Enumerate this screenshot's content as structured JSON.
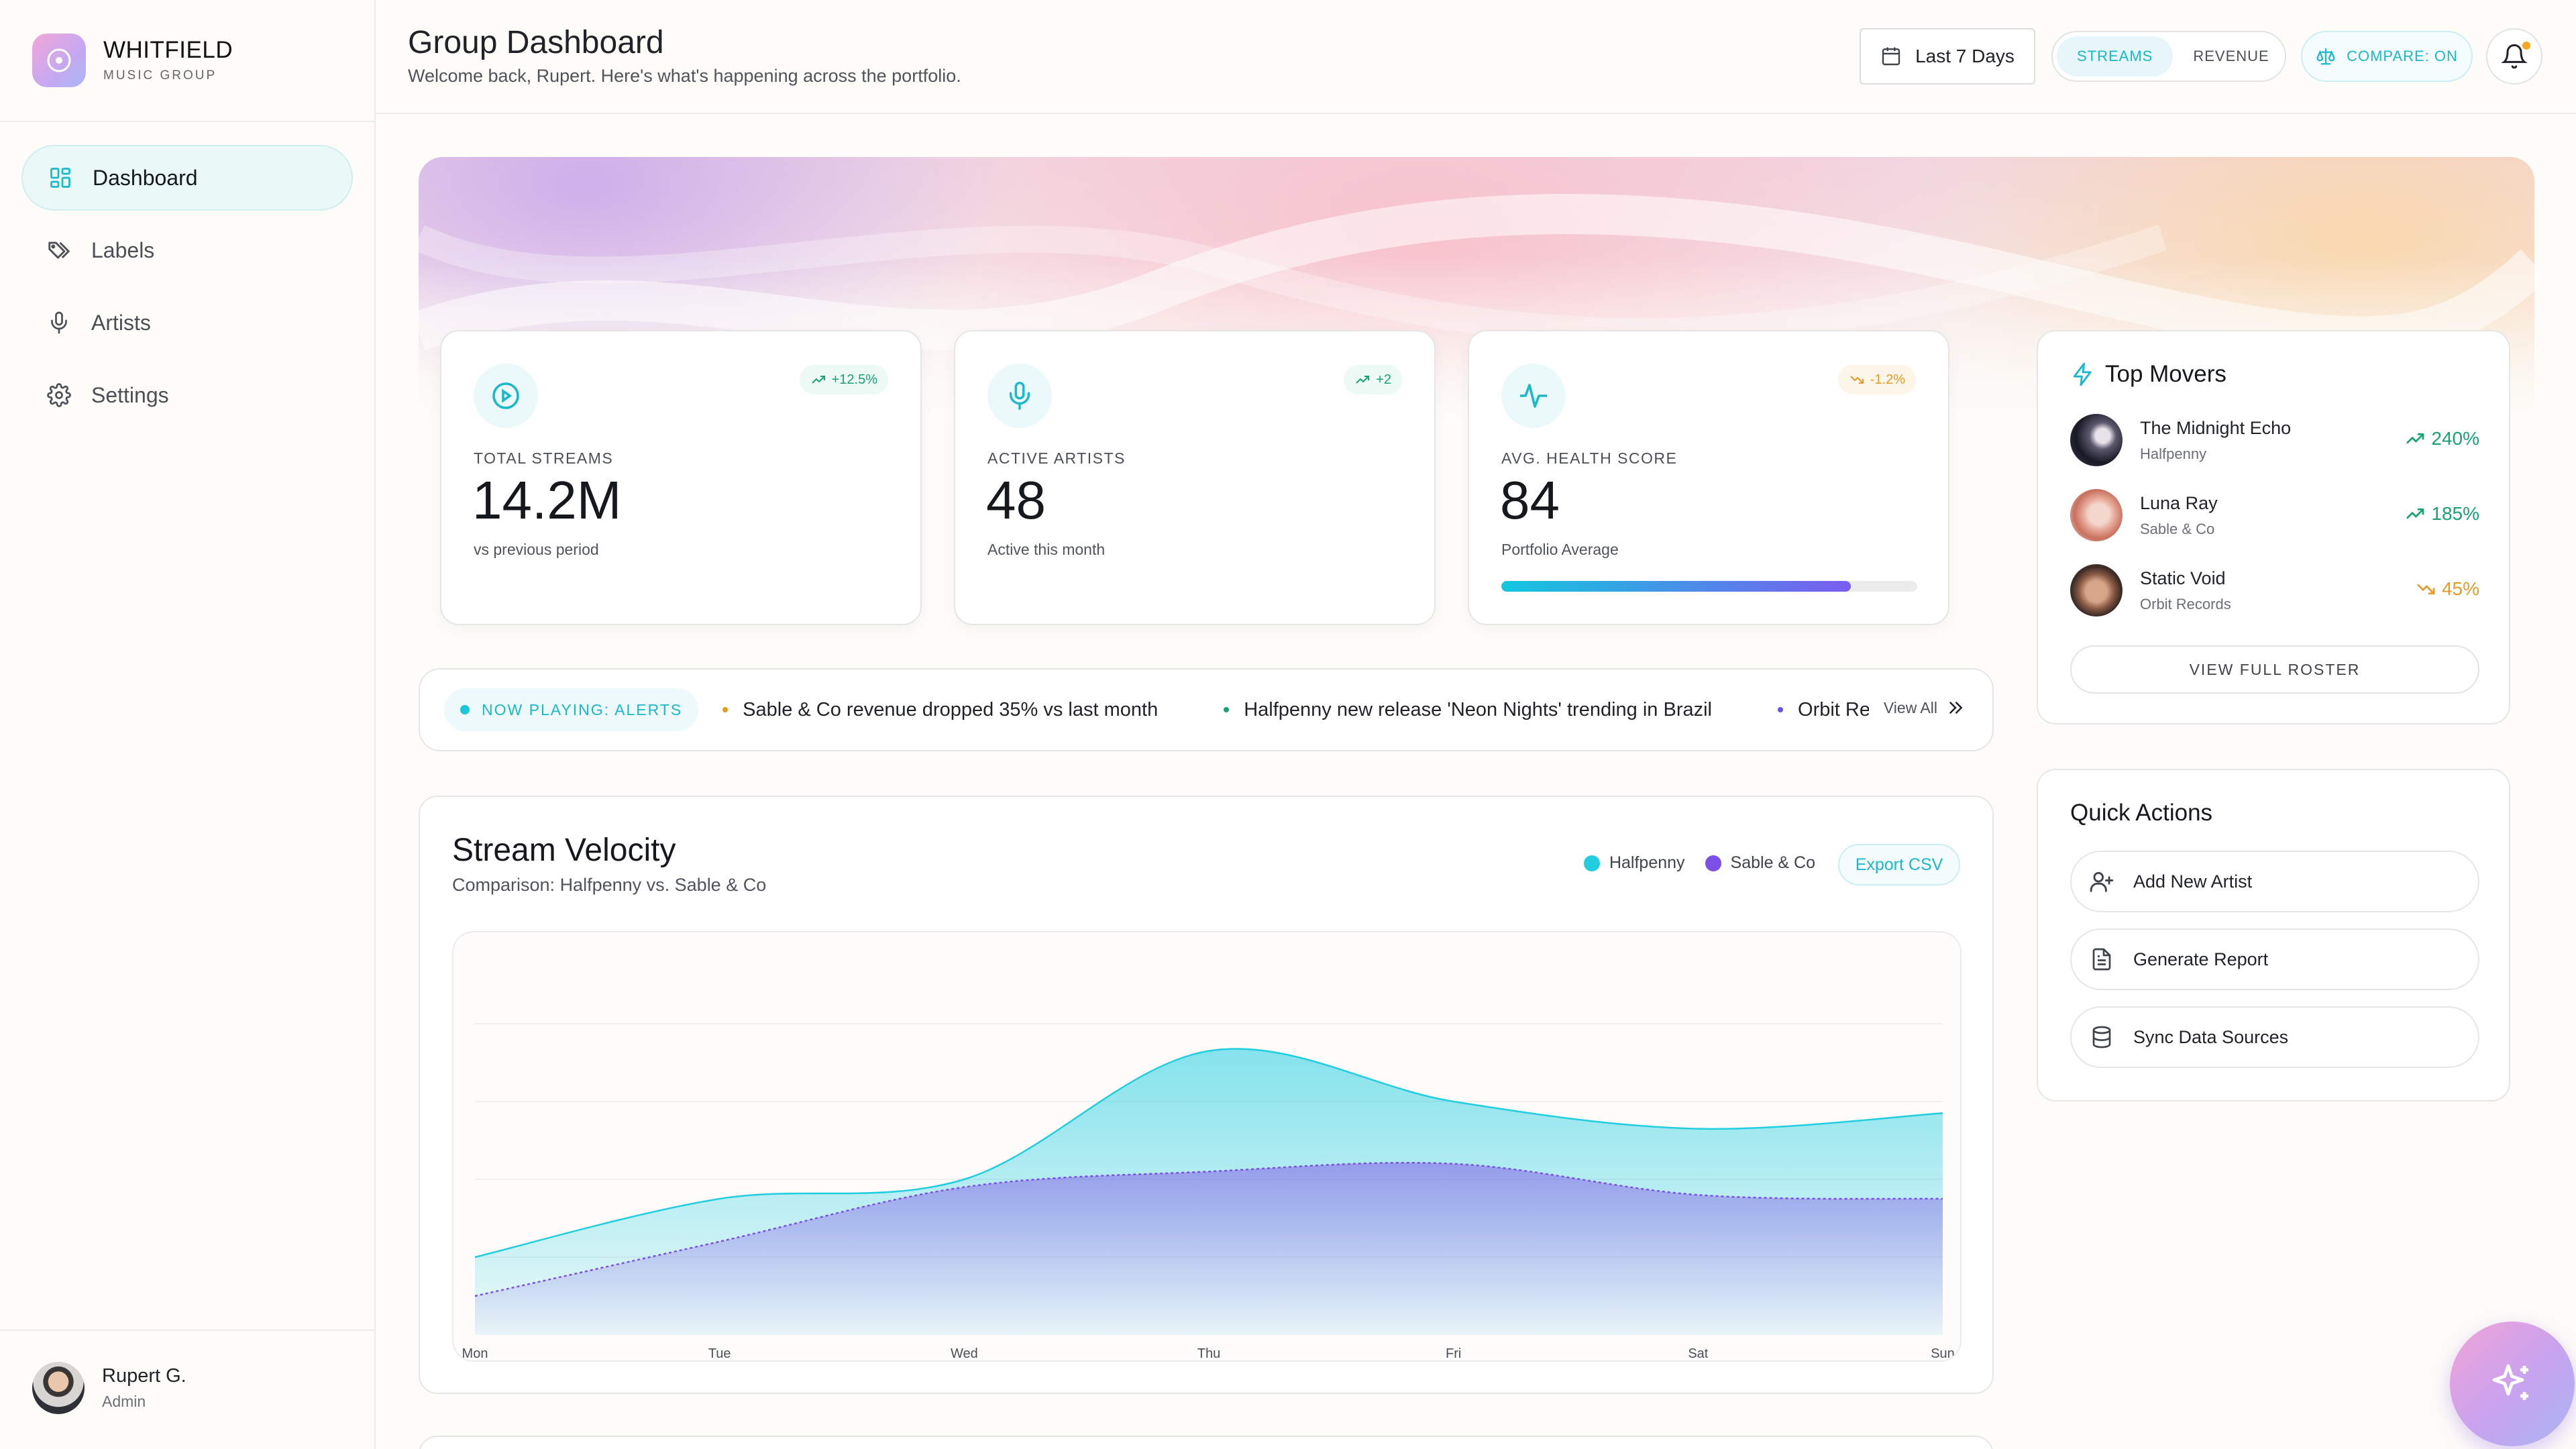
{
  "brand": {
    "name": "WHITFIELD",
    "subtitle": "MUSIC GROUP"
  },
  "sidebar": {
    "items": [
      {
        "label": "Dashboard",
        "icon": "dashboard-grid-icon",
        "active": true
      },
      {
        "label": "Labels",
        "icon": "tags-icon",
        "active": false
      },
      {
        "label": "Artists",
        "icon": "microphone-icon",
        "active": false
      },
      {
        "label": "Settings",
        "icon": "gear-icon",
        "active": false
      }
    ],
    "user": {
      "name": "Rupert G.",
      "role": "Admin"
    }
  },
  "header": {
    "title": "Group Dashboard",
    "subtitle": "Welcome back, Rupert. Here's what's happening across the portfolio.",
    "date_range": "Last 7 Days",
    "toggle": {
      "options": [
        "STREAMS",
        "REVENUE"
      ],
      "selected": "STREAMS"
    },
    "compare": "COMPARE: ON"
  },
  "stats": [
    {
      "label": "TOTAL STREAMS",
      "value": "14.2M",
      "note": "vs previous period",
      "change": "+12.5%",
      "trend": "up",
      "icon": "play-circle-icon"
    },
    {
      "label": "ACTIVE ARTISTS",
      "value": "48",
      "note": "Active this month",
      "change": "+2",
      "trend": "up",
      "icon": "microphone-icon"
    },
    {
      "label": "AVG. HEALTH SCORE",
      "value": "84",
      "note": "Portfolio Average",
      "change": "-1.2%",
      "trend": "down",
      "icon": "activity-pulse-icon",
      "progress": 0.84
    }
  ],
  "alerts": {
    "tag": "NOW PLAYING: ALERTS",
    "items": [
      {
        "text": "Sable & Co revenue dropped 35% vs last month",
        "color": "#e59b26"
      },
      {
        "text": "Halfpenny new release 'Neon Nights' trending in Brazil",
        "color": "#17a274"
      },
      {
        "text": "Orbit Records",
        "color": "#6b4fe0"
      }
    ],
    "view_all": "View All"
  },
  "chart": {
    "title": "Stream Velocity",
    "subtitle": "Comparison: Halfpenny vs. Sable & Co",
    "export_label": "Export CSV",
    "colors": {
      "Halfpenny": "#22cde0",
      "Sable & Co": "#7c4fe6"
    }
  },
  "chart_data": {
    "type": "area",
    "x": [
      "Mon",
      "Tue",
      "Wed",
      "Thu",
      "Fri",
      "Sat",
      "Sun"
    ],
    "series": [
      {
        "name": "Halfpenny",
        "values": [
          20,
          35,
          40,
          73,
          60,
          53,
          57
        ]
      },
      {
        "name": "Sable & Co",
        "values": [
          10,
          24,
          38,
          42,
          44,
          36,
          35
        ]
      }
    ],
    "ylim": [
      0,
      100
    ],
    "grid": true,
    "legend": "top-right"
  },
  "top_movers": {
    "title": "Top Movers",
    "items": [
      {
        "name": "The Midnight Echo",
        "label": "Halfpenny",
        "change": "240%",
        "trend": "up",
        "color": "#17a274"
      },
      {
        "name": "Luna Ray",
        "label": "Sable & Co",
        "change": "185%",
        "trend": "up",
        "color": "#17a274"
      },
      {
        "name": "Static Void",
        "label": "Orbit Records",
        "change": "45%",
        "trend": "down",
        "color": "#e59b26"
      }
    ],
    "button": "VIEW FULL ROSTER"
  },
  "quick_actions": {
    "title": "Quick Actions",
    "items": [
      {
        "label": "Add New Artist",
        "icon": "user-plus-icon"
      },
      {
        "label": "Generate Report",
        "icon": "document-icon"
      },
      {
        "label": "Sync Data Sources",
        "icon": "database-icon"
      }
    ]
  }
}
